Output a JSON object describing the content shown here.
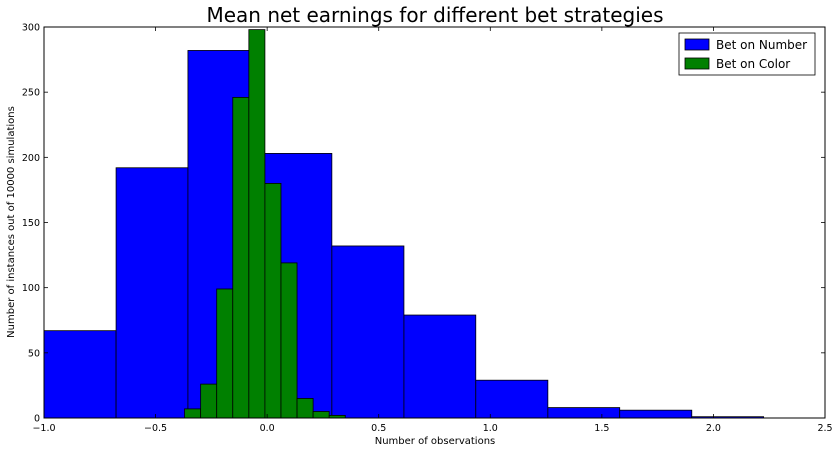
{
  "chart_data": {
    "type": "bar",
    "title": "Mean net earnings for different bet strategies",
    "xlabel": "Number of observations",
    "ylabel": "Number of instances out of 10000 simulations",
    "xlim": [
      -1.0,
      2.5
    ],
    "ylim": [
      0,
      300
    ],
    "xticks": [
      "−1.0",
      "−0.5",
      "0.0",
      "0.5",
      "1.0",
      "1.5",
      "2.0",
      "2.5"
    ],
    "yticks": [
      "0",
      "50",
      "100",
      "150",
      "200",
      "250",
      "300"
    ],
    "legend_position": "top-right",
    "series": [
      {
        "name": "Bet on Number",
        "color": "#0000ff",
        "bin_edges": [
          -1.0,
          -0.677,
          -0.355,
          -0.032,
          0.29,
          0.613,
          0.935,
          1.258,
          1.58,
          1.903,
          2.225
        ],
        "counts": [
          67,
          192,
          282,
          203,
          132,
          79,
          29,
          8,
          6,
          1
        ]
      },
      {
        "name": "Bet on Color",
        "color": "#008000",
        "bin_edges": [
          -0.37,
          -0.298,
          -0.226,
          -0.154,
          -0.082,
          -0.01,
          0.062,
          0.134,
          0.206,
          0.278,
          0.35
        ],
        "counts": [
          7,
          26,
          99,
          246,
          298,
          180,
          119,
          15,
          5,
          2
        ]
      }
    ]
  }
}
